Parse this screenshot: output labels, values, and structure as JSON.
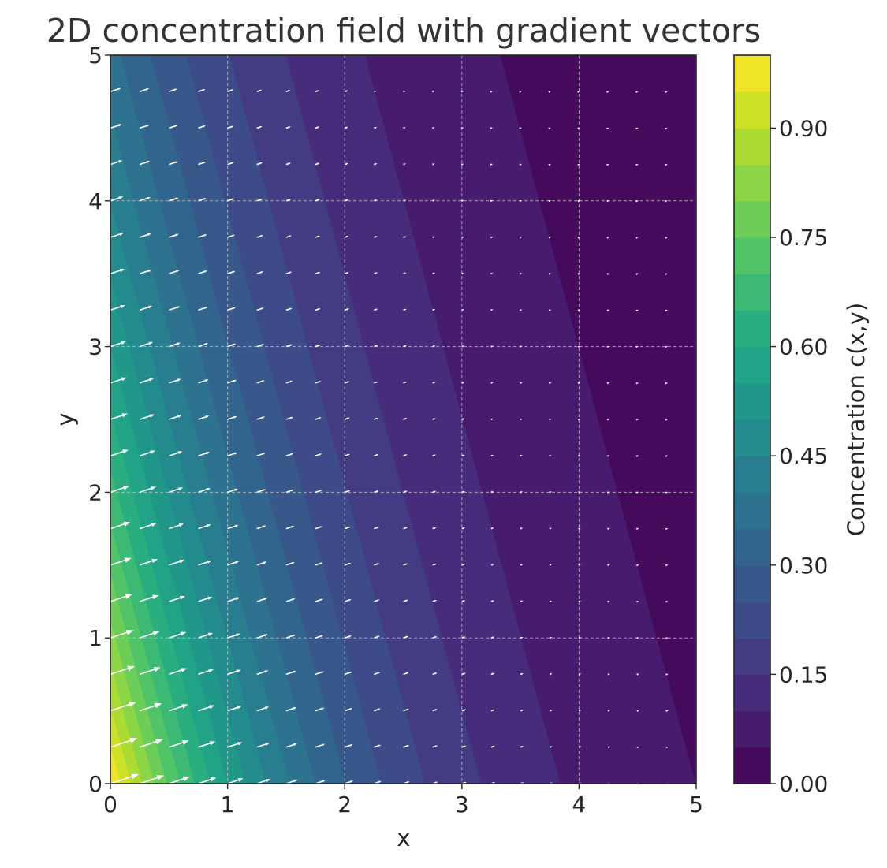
{
  "chart_data": {
    "type": "contourf_quiver",
    "title": "2D concentration field with gradient vectors",
    "xlabel": "x",
    "ylabel": "y",
    "xlim": [
      0,
      5
    ],
    "ylim": [
      0,
      5
    ],
    "x_ticks": [
      "0",
      "1",
      "2",
      "3",
      "4",
      "5"
    ],
    "y_ticks": [
      "0",
      "1",
      "2",
      "3",
      "4",
      "5"
    ],
    "grid": true,
    "field": {
      "model": "c(x,y) = exp(-0.6*x - 0.2*y)",
      "levels_count": 20,
      "vmin": 0.0,
      "vmax": 1.0
    },
    "quiver": {
      "grid_spacing": 0.25,
      "start": 0,
      "end": 4.75,
      "color": "#ffffff"
    },
    "colorbar": {
      "label": "Concentration c(x,y)",
      "ticks": [
        "0.00",
        "0.15",
        "0.30",
        "0.45",
        "0.60",
        "0.75",
        "0.90"
      ],
      "tick_values": [
        0.0,
        0.15,
        0.3,
        0.45,
        0.6,
        0.75,
        0.9
      ],
      "colormap": "viridis"
    }
  }
}
